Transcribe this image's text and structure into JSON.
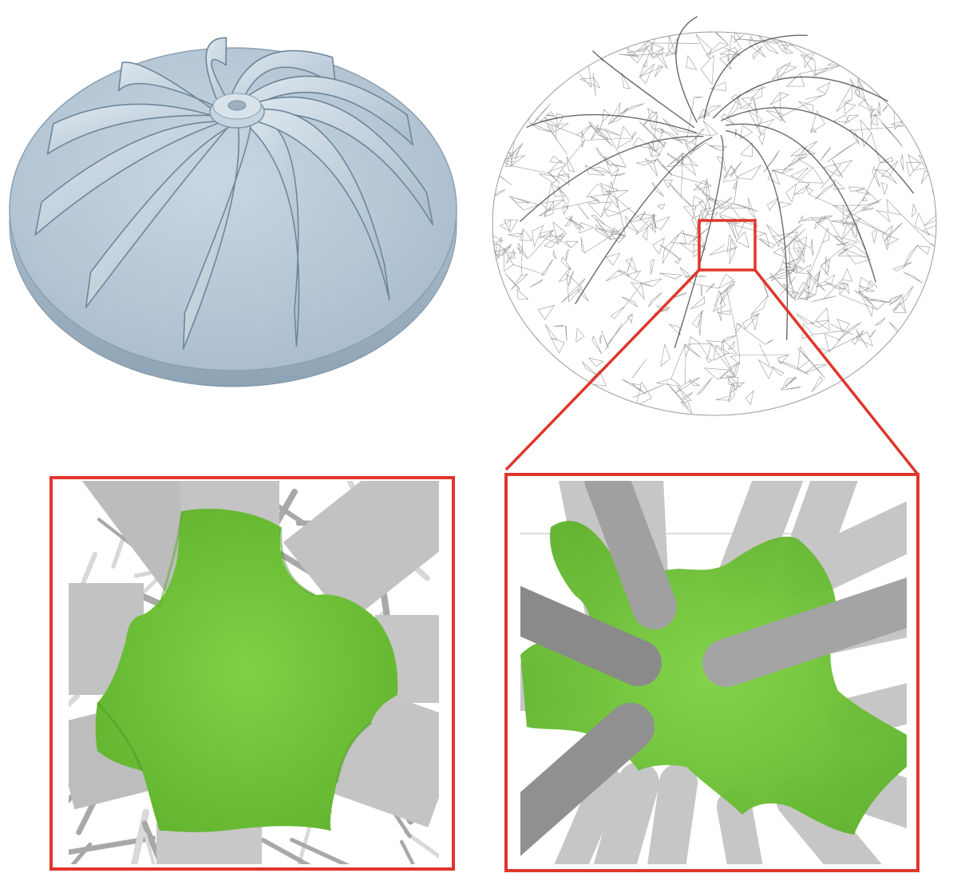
{
  "figure": {
    "panels": [
      {
        "id": "impeller-solid",
        "kind": "shaded solid CAD model"
      },
      {
        "id": "impeller-wireframe",
        "kind": "tetrahedral mesh wireframe"
      },
      {
        "id": "node-zoom-left",
        "kind": "lattice node with green blended junction"
      },
      {
        "id": "node-zoom-right",
        "kind": "lattice node with green blended junction"
      }
    ],
    "impeller": {
      "blade_count": 11
    },
    "colors": {
      "solid": "#b4c6d4",
      "solid_dark": "#8fa4b5",
      "wire": "#555555",
      "highlight": "#e0362c",
      "node_green": "#78c83e",
      "strut_gray": "#c8c8c8",
      "strut_dark": "#8c8c8c"
    }
  }
}
